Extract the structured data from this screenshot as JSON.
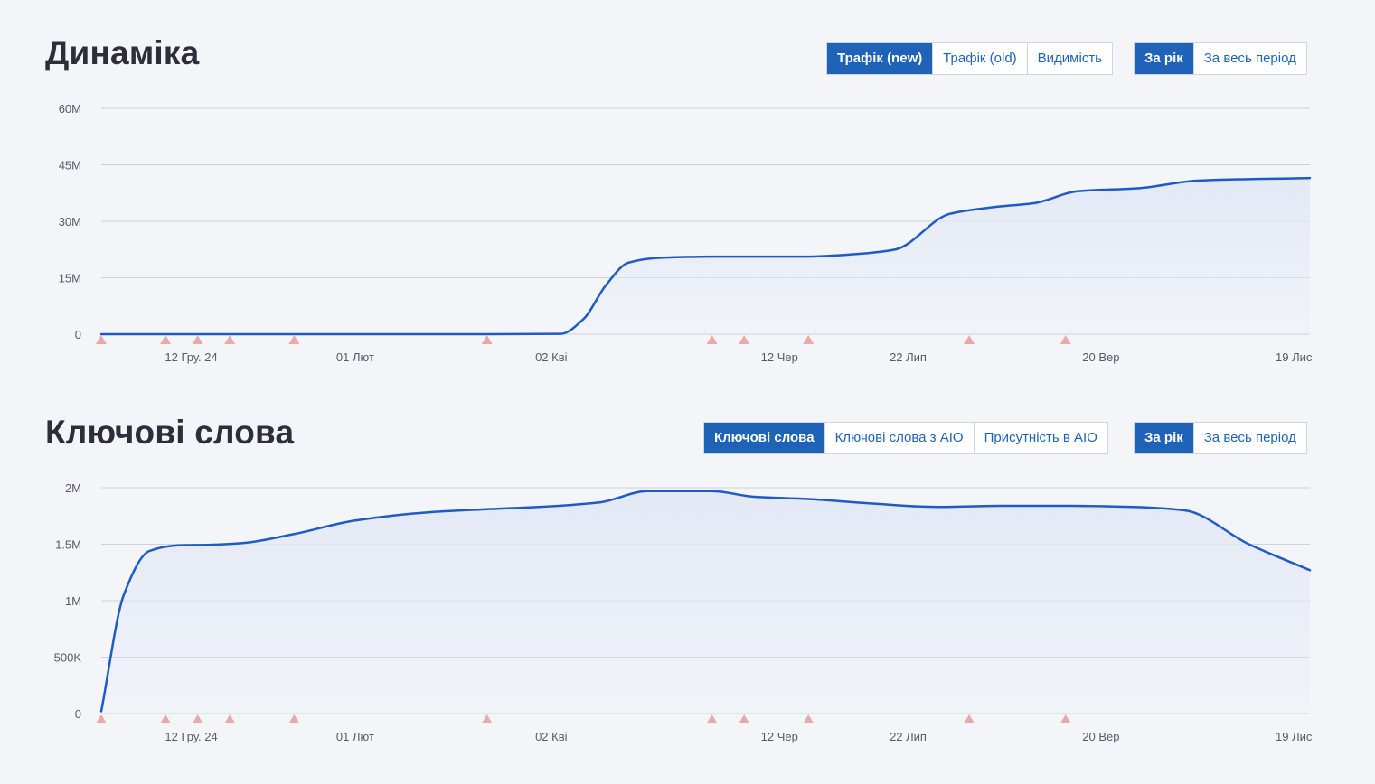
{
  "colors": {
    "accent": "#1e63b8",
    "line": "#1f5bc4",
    "grid": "#cdd2da",
    "marker": "#eaa9a9",
    "fill_top": "#e3e9f5"
  },
  "markers_x": [
    "2023-11-14",
    "2023-12-04",
    "2023-12-14",
    "2023-12-24",
    "2024-01-13",
    "2024-03-13",
    "2024-05-22",
    "2024-06-01",
    "2024-06-21",
    "2024-08-10",
    "2024-09-09"
  ],
  "sections": [
    {
      "title": "Динаміка",
      "tab_group": [
        "Трафік (new)",
        "Трафік (old)",
        "Видимість"
      ],
      "tab_active": 0,
      "period_group": [
        "За рік",
        "За весь період"
      ],
      "period_active": 0
    },
    {
      "title": "Ключові слова",
      "tab_group": [
        "Ключові слова",
        "Ключові слова з AIO",
        "Присутність в AIO"
      ],
      "tab_active": 0,
      "period_group": [
        "За рік",
        "За весь період"
      ],
      "period_active": 0
    }
  ],
  "chart_data": [
    {
      "type": "area",
      "x_type": "date",
      "xlim": [
        "2023-11-14",
        "2024-11-24"
      ],
      "ylim": [
        0,
        60000000
      ],
      "yticks": [
        0,
        15000000,
        30000000,
        45000000,
        60000000
      ],
      "ytick_labels": [
        "0",
        "15M",
        "30M",
        "45M",
        "60M"
      ],
      "xticks": [
        "2023-12-12",
        "2024-02-01",
        "2024-04-02",
        "2024-06-12",
        "2024-07-22",
        "2024-09-20",
        "2024-11-19"
      ],
      "xtick_labels": [
        "12 Гру. 24",
        "01 Лют",
        "02 Кві",
        "12 Чер",
        "22 Лип",
        "20 Вер",
        "19 Лис"
      ],
      "grid": true,
      "series": [
        {
          "x": [
            "2023-11-14",
            "2024-01-14",
            "2024-03-14",
            "2024-04-05",
            "2024-04-12",
            "2024-04-19",
            "2024-04-26",
            "2024-05-06",
            "2024-05-22",
            "2024-06-20",
            "2024-07-06",
            "2024-07-18",
            "2024-08-04",
            "2024-08-18",
            "2024-08-30",
            "2024-09-13",
            "2024-10-02",
            "2024-10-20",
            "2024-11-24"
          ],
          "values": [
            0,
            0,
            0,
            100000,
            4000000,
            13000000,
            19000000,
            20300000,
            20600000,
            20600000,
            21300000,
            22500000,
            32000000,
            33800000,
            34800000,
            38000000,
            38800000,
            40800000,
            41500000
          ]
        }
      ]
    },
    {
      "type": "area",
      "x_type": "date",
      "xlim": [
        "2023-11-14",
        "2024-11-24"
      ],
      "ylim": [
        0,
        2000000
      ],
      "yticks": [
        0,
        500000,
        1000000,
        1500000,
        2000000
      ],
      "ytick_labels": [
        "0",
        "500K",
        "1M",
        "1.5M",
        "2M"
      ],
      "xticks": [
        "2023-12-12",
        "2024-02-01",
        "2024-04-02",
        "2024-06-12",
        "2024-07-22",
        "2024-09-20",
        "2024-11-19"
      ],
      "xtick_labels": [
        "12 Гру. 24",
        "01 Лют",
        "02 Кві",
        "12 Чер",
        "22 Лип",
        "20 Вер",
        "19 Лис"
      ],
      "grid": true,
      "series": [
        {
          "x": [
            "2023-11-14",
            "2023-11-21",
            "2023-11-29",
            "2023-12-08",
            "2023-12-18",
            "2023-12-28",
            "2024-01-13",
            "2024-02-01",
            "2024-02-25",
            "2024-03-13",
            "2024-03-29",
            "2024-04-17",
            "2024-05-02",
            "2024-05-22",
            "2024-06-04",
            "2024-06-21",
            "2024-07-11",
            "2024-07-31",
            "2024-08-20",
            "2024-09-10",
            "2024-09-30",
            "2024-10-16",
            "2024-11-05",
            "2024-11-24"
          ],
          "values": [
            20000,
            1050000,
            1440000,
            1490000,
            1495000,
            1510000,
            1590000,
            1710000,
            1785000,
            1810000,
            1830000,
            1870000,
            1970000,
            1970000,
            1920000,
            1900000,
            1860000,
            1830000,
            1840000,
            1840000,
            1830000,
            1800000,
            1500000,
            1270000
          ]
        }
      ]
    }
  ]
}
